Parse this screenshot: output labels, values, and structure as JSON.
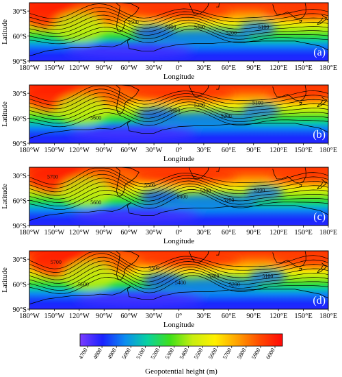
{
  "figure": {
    "ylabel": "Latitude",
    "xlabel": "Longitude",
    "ytick_labels": [
      "30°S",
      "60°S",
      "90°S"
    ],
    "xtick_labels": [
      "180°W",
      "150°W",
      "120°W",
      "90°W",
      "60°W",
      "30°W",
      "0°",
      "30°E",
      "60°E",
      "90°E",
      "120°E",
      "150°E",
      "180°E"
    ]
  },
  "panels": [
    {
      "letter": "(a)",
      "contour_labels": [
        {
          "text": "5500",
          "lon": -55,
          "lat": -43
        },
        {
          "text": "5400",
          "lon": -10,
          "lat": -49
        },
        {
          "text": "5300",
          "lon": 25,
          "lat": -49
        },
        {
          "text": "5200",
          "lon": 63,
          "lat": -56
        },
        {
          "text": "5100",
          "lon": 102,
          "lat": -49
        }
      ]
    },
    {
      "letter": "(b)",
      "contour_labels": [
        {
          "text": "5600",
          "lon": -100,
          "lat": -59
        },
        {
          "text": "5400",
          "lon": -5,
          "lat": -50
        },
        {
          "text": "5300",
          "lon": 25,
          "lat": -44
        },
        {
          "text": "5200",
          "lon": 57,
          "lat": -57
        },
        {
          "text": "5100",
          "lon": 95,
          "lat": -41
        }
      ]
    },
    {
      "letter": "(c)",
      "contour_labels": [
        {
          "text": "5700",
          "lon": -152,
          "lat": -31
        },
        {
          "text": "5600",
          "lon": -100,
          "lat": -62
        },
        {
          "text": "5500",
          "lon": -35,
          "lat": -41
        },
        {
          "text": "5400",
          "lon": 4,
          "lat": -55
        },
        {
          "text": "5300",
          "lon": 32,
          "lat": -48
        },
        {
          "text": "5200",
          "lon": 60,
          "lat": -59
        },
        {
          "text": "5100",
          "lon": 97,
          "lat": -47
        }
      ]
    },
    {
      "letter": "(d)",
      "contour_labels": [
        {
          "text": "5700",
          "lon": -148,
          "lat": -33
        },
        {
          "text": "5600",
          "lon": -115,
          "lat": -60
        },
        {
          "text": "5500",
          "lon": -30,
          "lat": -40
        },
        {
          "text": "5400",
          "lon": 2,
          "lat": -58
        },
        {
          "text": "5300",
          "lon": 42,
          "lat": -50
        },
        {
          "text": "5200",
          "lon": 67,
          "lat": -60
        },
        {
          "text": "5100",
          "lon": 107,
          "lat": -50
        }
      ]
    }
  ],
  "colorbar": {
    "label": "Geopotential height (m)",
    "ticks": [
      "4700",
      "4800",
      "4900",
      "5000",
      "5100",
      "5200",
      "5300",
      "5400",
      "5500",
      "5600",
      "5700",
      "5800",
      "5900",
      "6000"
    ],
    "min": 4700,
    "max": 6000,
    "color_stops": [
      "#7b3cff",
      "#1a22ff",
      "#0b8cf0",
      "#08d2a0",
      "#3ee01a",
      "#c8ee10",
      "#fff000",
      "#ffa000",
      "#ff4a00",
      "#ff0808"
    ]
  },
  "map": {
    "lon_range": [
      -180,
      180
    ],
    "lat_range": [
      -90,
      -20
    ],
    "coastline_color": "#000000",
    "contour_color": "#000000"
  }
}
